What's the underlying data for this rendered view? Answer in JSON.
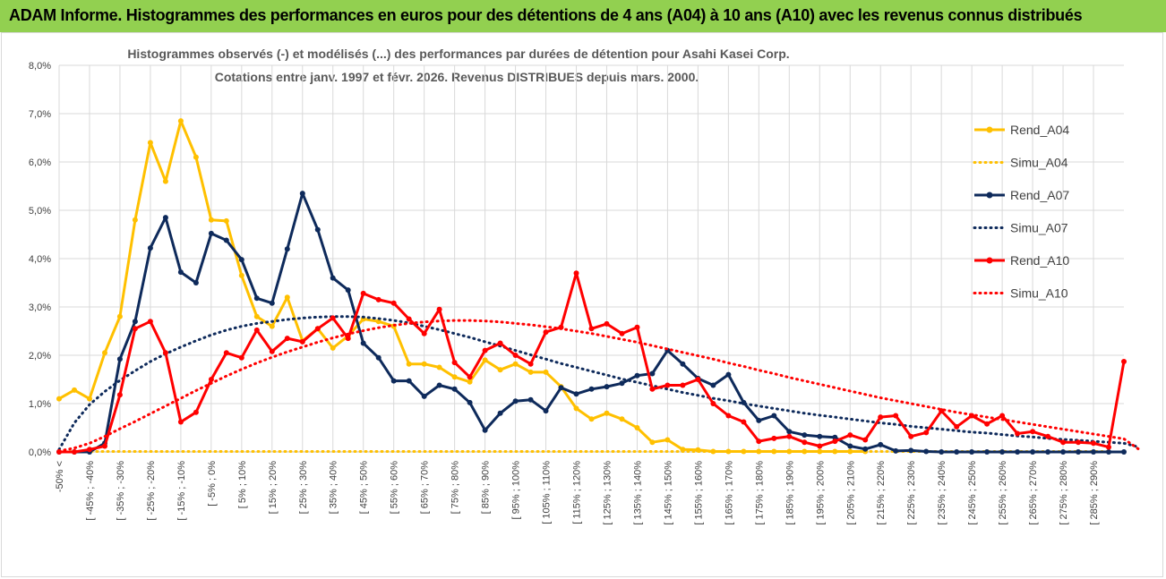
{
  "banner": {
    "title": "ADAM Informe. Histogrammes des performances en euros pour des détentions de 4 ans (A04) à 10 ans (A10) avec les revenus connus distribués"
  },
  "colors": {
    "banner_bg": "#92d050",
    "a04": "#ffc000",
    "a07": "#0e2a5b",
    "a10": "#ff0000",
    "grid": "#d9d9d9"
  },
  "chart_data": {
    "type": "line",
    "title_lines": [
      "Histogrammes observés (-) et modélisés (...) des performances par durées de détention pour Asahi Kasei Corp.",
      "Cotations entre janv. 1997 et févr. 2026. Revenus DISTRIBUES depuis mars. 2000."
    ],
    "y_axis": {
      "min": 0,
      "max": 8,
      "step": 1,
      "tick_labels": [
        "0,0%",
        "1,0%",
        "2,0%",
        "3,0%",
        "4,0%",
        "5,0%",
        "6,0%",
        "7,0%",
        "8,0%"
      ]
    },
    "x_tick_labels": [
      "-50% <",
      "[ -45% ; -40%",
      "[ -35% ; -30%",
      "[ -25% ; -20%",
      "[ -15% ; -10%",
      "[ -5% ; 0%",
      "[ 5% ; 10%",
      "[ 15% ; 20%",
      "[ 25% ; 30%",
      "[ 35% ; 40%",
      "[ 45% ; 50%",
      "[ 55% ; 60%",
      "[ 65% ; 70%",
      "[ 75% ; 80%",
      "[ 85% ; 90%",
      "[ 95% ; 100%",
      "[ 105% ; 110%",
      "[ 115% ; 120%",
      "[ 125% ; 130%",
      "[ 135% ; 140%",
      "[ 145% ; 150%",
      "[ 155% ; 160%",
      "[ 165% ; 170%",
      "[ 175% ; 180%",
      "[ 185% ; 190%",
      "[ 195% ; 200%",
      "[ 205% ; 210%",
      "[ 215% ; 220%",
      "[ 225% ; 230%",
      "[ 235% ; 240%",
      "[ 245% ; 250%",
      "[ 255% ; 260%",
      "[ 265% ; 270%",
      "[ 275% ; 280%",
      "[ 285% ; 290%"
    ],
    "series": [
      {
        "name": "Rend_A04",
        "style": "solid",
        "color": "#ffc000",
        "values": [
          1.1,
          1.28,
          1.1,
          2.05,
          2.8,
          4.8,
          6.4,
          5.6,
          6.85,
          6.1,
          4.8,
          4.78,
          3.65,
          2.8,
          2.6,
          3.2,
          2.3,
          2.55,
          2.15,
          2.4,
          2.75,
          2.7,
          2.6,
          1.82,
          1.82,
          1.75,
          1.55,
          1.45,
          1.9,
          1.7,
          1.82,
          1.65,
          1.65,
          1.35,
          0.9,
          0.68,
          0.8,
          0.68,
          0.5,
          0.2,
          0.25,
          0.05,
          0.04,
          0.01,
          0.01,
          0.01,
          0.01,
          0.01,
          0.01,
          0.01,
          0.01,
          0.01,
          0.01,
          0.01
        ]
      },
      {
        "name": "Simu_A04",
        "style": "dotted",
        "color": "#ffc000",
        "values": [
          0.0,
          0.01,
          0.01,
          0.01,
          0.01,
          0.01,
          0.01,
          0.01,
          0.01,
          0.01,
          0.01,
          0.01,
          0.01,
          0.01,
          0.01,
          0.01,
          0.01,
          0.01,
          0.01,
          0.01,
          0.01,
          0.01,
          0.01,
          0.01,
          0.01,
          0.01,
          0.01,
          0.01,
          0.01,
          0.01,
          0.01,
          0.01,
          0.01,
          0.01,
          0.01,
          0.01,
          0.01,
          0.01,
          0.01,
          0.01,
          0.01,
          0.01,
          0.01,
          0.01,
          0.01,
          0.01,
          0.01,
          0.01,
          0.01,
          0.01,
          0.01,
          0.01,
          0.01,
          0.01,
          0.01,
          0.01,
          0.01,
          0.01,
          0.01,
          0.01,
          0.01,
          0.01,
          0.01,
          0.01,
          0.01,
          0.01,
          0.01,
          0.01,
          0.01,
          0.01
        ]
      },
      {
        "name": "Rend_A07",
        "style": "solid",
        "color": "#0e2a5b",
        "values": [
          0.0,
          0.0,
          0.0,
          0.18,
          1.92,
          2.7,
          4.22,
          4.85,
          3.72,
          3.5,
          4.52,
          4.38,
          3.98,
          3.18,
          3.08,
          4.2,
          5.35,
          4.6,
          3.6,
          3.35,
          2.25,
          1.95,
          1.47,
          1.47,
          1.15,
          1.38,
          1.3,
          1.02,
          0.45,
          0.8,
          1.05,
          1.08,
          0.85,
          1.33,
          1.2,
          1.3,
          1.35,
          1.42,
          1.58,
          1.62,
          2.1,
          1.82,
          1.52,
          1.38,
          1.6,
          1.02,
          0.65,
          0.75,
          0.42,
          0.35,
          0.32,
          0.3,
          0.12,
          0.06,
          0.15,
          0.02,
          0.03,
          0.01,
          0.0,
          0.0,
          0.0,
          0.0,
          0.0,
          0.0,
          0.0,
          0.0,
          0.0,
          0.0,
          0.0,
          0.0,
          0.0
        ]
      },
      {
        "name": "Simu_A07",
        "style": "dotted",
        "color": "#0e2a5b",
        "values": [
          0.05,
          0.6,
          0.98,
          1.25,
          1.48,
          1.68,
          1.87,
          2.03,
          2.17,
          2.3,
          2.42,
          2.52,
          2.6,
          2.66,
          2.7,
          2.74,
          2.77,
          2.79,
          2.8,
          2.8,
          2.79,
          2.76,
          2.72,
          2.67,
          2.6,
          2.53,
          2.45,
          2.37,
          2.28,
          2.19,
          2.1,
          2.01,
          1.92,
          1.83,
          1.75,
          1.67,
          1.59,
          1.51,
          1.44,
          1.37,
          1.3,
          1.23,
          1.17,
          1.11,
          1.06,
          1.0,
          0.95,
          0.9,
          0.85,
          0.8,
          0.76,
          0.72,
          0.68,
          0.64,
          0.6,
          0.57,
          0.53,
          0.5,
          0.47,
          0.44,
          0.41,
          0.39,
          0.36,
          0.33,
          0.31,
          0.28,
          0.26,
          0.24,
          0.22,
          0.2,
          0.18,
          0.1
        ]
      },
      {
        "name": "Rend_A10",
        "style": "solid",
        "color": "#ff0000",
        "values": [
          0.0,
          0.0,
          0.05,
          0.12,
          1.18,
          2.55,
          2.7,
          2.05,
          0.62,
          0.82,
          1.5,
          2.05,
          1.95,
          2.52,
          2.08,
          2.35,
          2.28,
          2.55,
          2.77,
          2.35,
          3.28,
          3.15,
          3.08,
          2.75,
          2.45,
          2.95,
          1.85,
          1.55,
          2.1,
          2.25,
          2.0,
          1.82,
          2.48,
          2.58,
          3.7,
          2.55,
          2.65,
          2.45,
          2.58,
          1.3,
          1.38,
          1.38,
          1.5,
          1.0,
          0.75,
          0.62,
          0.22,
          0.28,
          0.32,
          0.2,
          0.12,
          0.22,
          0.35,
          0.25,
          0.72,
          0.75,
          0.32,
          0.4,
          0.85,
          0.52,
          0.75,
          0.58,
          0.75,
          0.38,
          0.42,
          0.32,
          0.2,
          0.2,
          0.18,
          0.1,
          1.87
        ]
      },
      {
        "name": "Simu_A10",
        "style": "dotted",
        "color": "#ff0000",
        "values": [
          0.02,
          0.08,
          0.18,
          0.32,
          0.48,
          0.63,
          0.79,
          0.95,
          1.11,
          1.27,
          1.42,
          1.57,
          1.71,
          1.84,
          1.96,
          2.07,
          2.17,
          2.27,
          2.36,
          2.44,
          2.51,
          2.57,
          2.62,
          2.66,
          2.69,
          2.71,
          2.72,
          2.72,
          2.71,
          2.69,
          2.66,
          2.63,
          2.59,
          2.55,
          2.5,
          2.45,
          2.39,
          2.33,
          2.27,
          2.2,
          2.13,
          2.06,
          1.99,
          1.92,
          1.84,
          1.77,
          1.69,
          1.62,
          1.54,
          1.47,
          1.4,
          1.33,
          1.26,
          1.19,
          1.12,
          1.06,
          1.0,
          0.94,
          0.88,
          0.82,
          0.77,
          0.72,
          0.67,
          0.62,
          0.57,
          0.52,
          0.47,
          0.42,
          0.37,
          0.32,
          0.27,
          0.05
        ]
      }
    ],
    "legend_position": "right"
  }
}
